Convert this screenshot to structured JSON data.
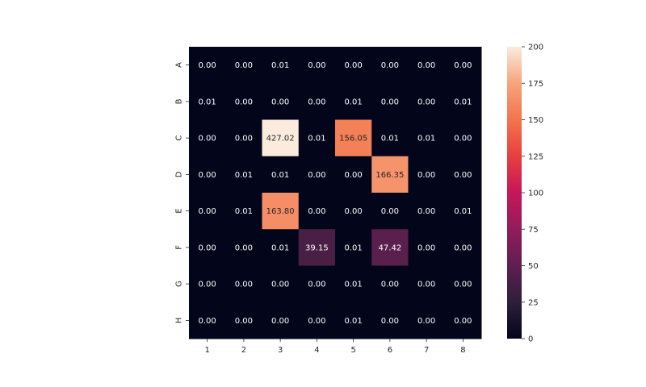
{
  "chart_data": {
    "type": "heatmap",
    "title": "",
    "xlabel": "",
    "ylabel": "",
    "x_categories": [
      "1",
      "2",
      "3",
      "4",
      "5",
      "6",
      "7",
      "8"
    ],
    "y_categories": [
      "A",
      "B",
      "C",
      "D",
      "E",
      "F",
      "G",
      "H"
    ],
    "values": [
      [
        0.0,
        0.0,
        0.01,
        0.0,
        0.0,
        0.0,
        0.0,
        0.0
      ],
      [
        0.01,
        0.0,
        0.0,
        0.0,
        0.01,
        0.0,
        0.0,
        0.01
      ],
      [
        0.0,
        0.0,
        427.02,
        0.01,
        156.05,
        0.01,
        0.01,
        0.0
      ],
      [
        0.0,
        0.01,
        0.01,
        0.0,
        0.0,
        166.35,
        0.0,
        0.0
      ],
      [
        0.0,
        0.01,
        163.8,
        0.0,
        0.0,
        0.0,
        0.0,
        0.01
      ],
      [
        0.0,
        0.0,
        0.01,
        39.15,
        0.01,
        47.42,
        0.0,
        0.0
      ],
      [
        0.0,
        0.0,
        0.0,
        0.0,
        0.01,
        0.0,
        0.0,
        0.0
      ],
      [
        0.0,
        0.0,
        0.0,
        0.0,
        0.01,
        0.0,
        0.0,
        0.0
      ]
    ],
    "value_format": "0.00",
    "color_scale": {
      "name": "rocket",
      "min": 0,
      "max": 200,
      "ticks": [
        "0",
        "25",
        "50",
        "75",
        "100",
        "125",
        "150",
        "175",
        "200"
      ]
    },
    "colorbar": true,
    "grid": false
  }
}
